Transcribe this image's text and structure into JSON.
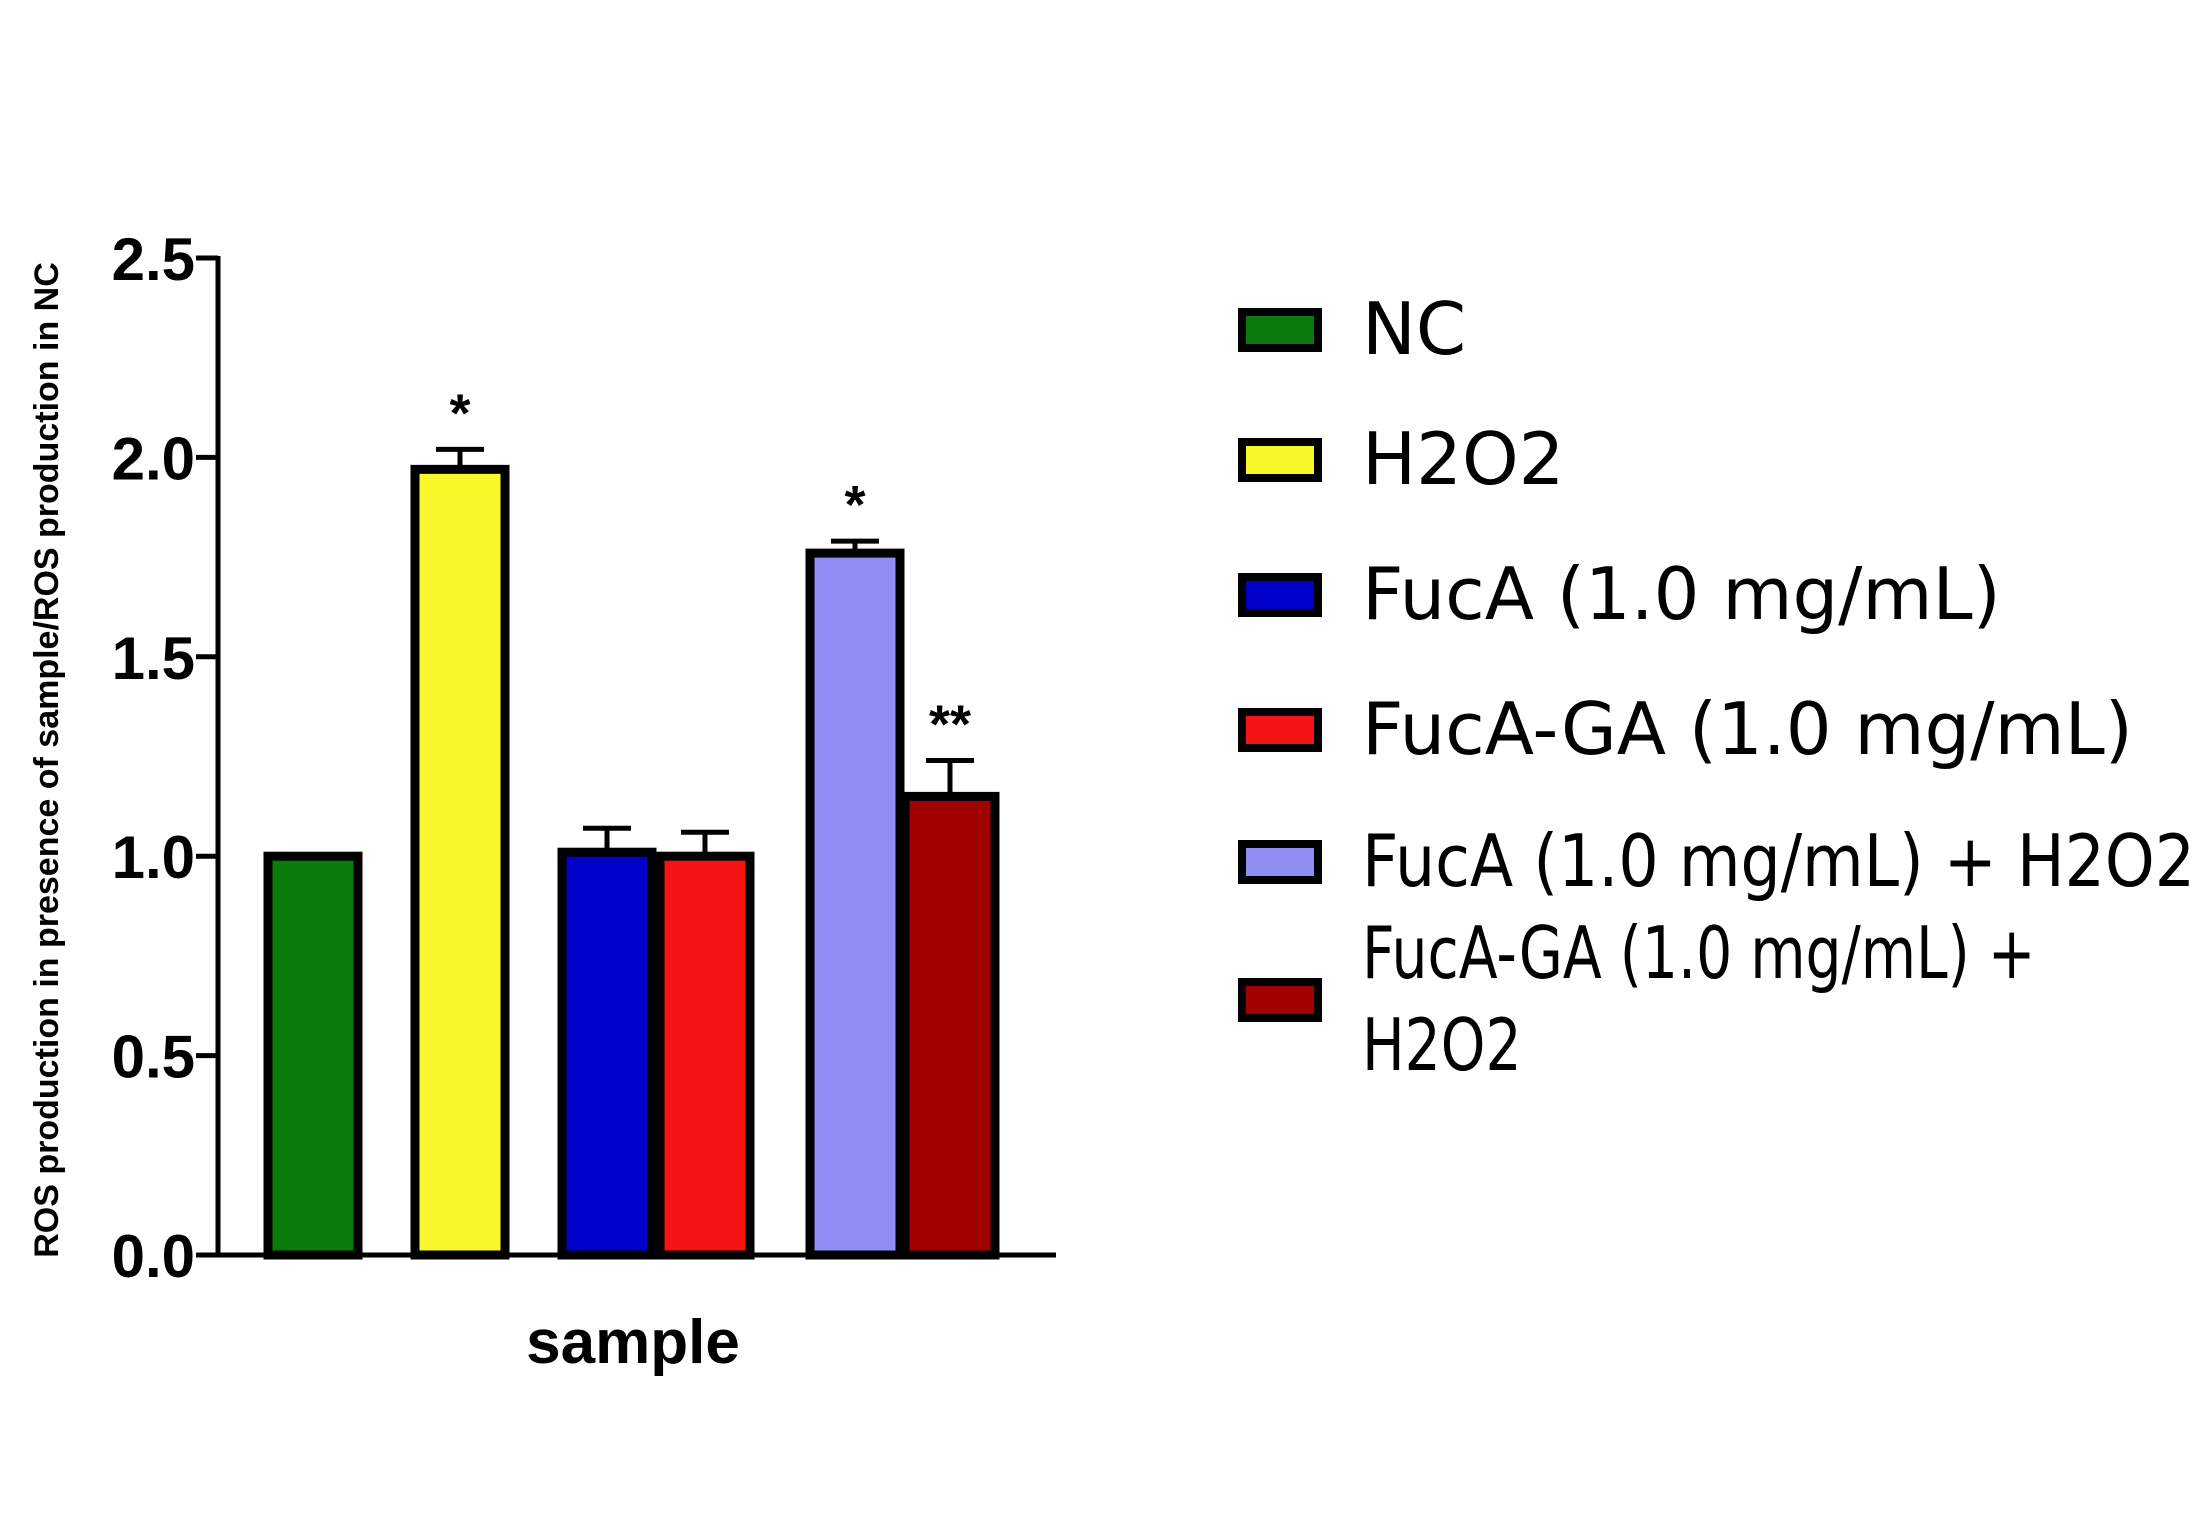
{
  "chart_data": {
    "type": "bar",
    "title": "",
    "xlabel": "sample",
    "ylabel": "ROS production in presence of sample/ROS production in NC",
    "ylim": [
      0,
      2.5
    ],
    "yticks": [
      0.0,
      0.5,
      1.0,
      1.5,
      2.0,
      2.5
    ],
    "ytick_labels": [
      "0.0",
      "0.5",
      "1.0",
      "1.5",
      "2.0",
      "2.5"
    ],
    "grid": false,
    "legend_position": "right",
    "series": [
      {
        "name": "NC",
        "value": 1.0,
        "error": 0.0,
        "color": "#0a7a0a",
        "significance": ""
      },
      {
        "name": "H2O2",
        "value": 1.97,
        "error": 0.05,
        "color": "#f7f72a",
        "significance": "*"
      },
      {
        "name": "FucA (1.0 mg/mL)",
        "value": 1.01,
        "error": 0.06,
        "color": "#0000c8",
        "significance": ""
      },
      {
        "name": "FucA-GA (1.0 mg/mL)",
        "value": 1.0,
        "error": 0.06,
        "color": "#f51414",
        "significance": ""
      },
      {
        "name": "FucA (1.0 mg/mL) + H2O2",
        "value": 1.76,
        "error": 0.03,
        "color": "#8e8ef5",
        "significance": "*"
      },
      {
        "name": "FucA-GA (1.0 mg/mL) + H2O2",
        "value": 1.15,
        "error": 0.09,
        "color": "#a00000",
        "significance": "**"
      }
    ],
    "legend_labels": [
      [
        "NC"
      ],
      [
        "H2O2"
      ],
      [
        "FucA (1.0 mg/mL)"
      ],
      [
        "FucA-GA (1.0 mg/mL)"
      ],
      [
        "FucA (1.0 mg/mL) + H2O2"
      ],
      [
        "FucA-GA (1.0 mg/mL) +",
        "H2O2"
      ]
    ]
  }
}
